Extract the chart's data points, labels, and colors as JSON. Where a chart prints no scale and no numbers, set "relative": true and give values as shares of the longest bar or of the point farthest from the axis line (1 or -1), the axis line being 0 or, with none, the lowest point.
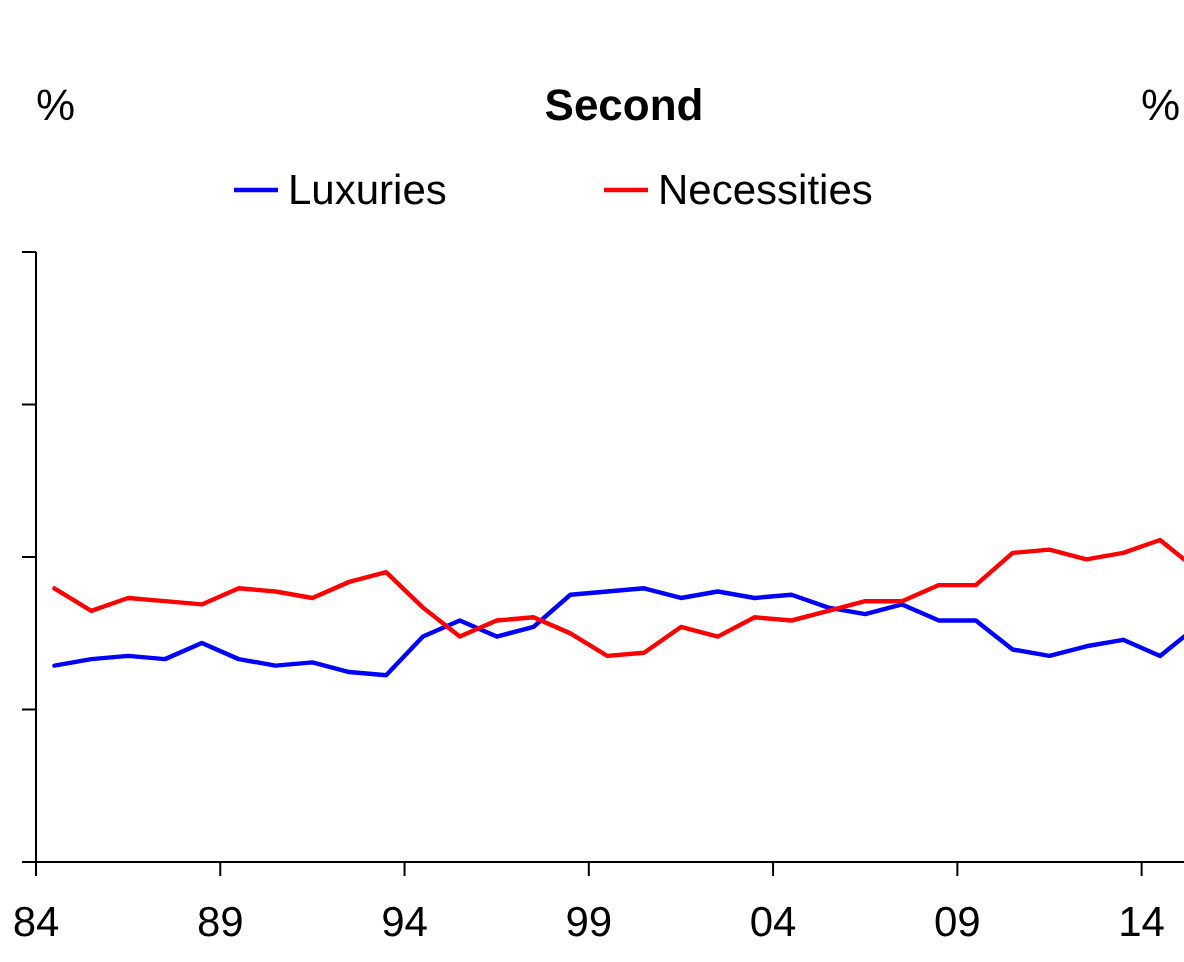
{
  "chart_data": {
    "type": "line",
    "title": "Second",
    "annotations": [
      "%",
      "%"
    ],
    "relative": true,
    "legend": "top",
    "marker": "none",
    "line_style": "solid",
    "x": [
      1984.5,
      1985.5,
      1986.5,
      1987.5,
      1988.5,
      1989.5,
      1990.5,
      1991.5,
      1992.5,
      1993.5,
      1994.5,
      1995.5,
      1996.5,
      1997.5,
      1998.5,
      1999.5,
      2000.5,
      2001.5,
      2002.5,
      2003.5,
      2004.5,
      2005.5,
      2006.5,
      2007.5,
      2008.5,
      2009.5,
      2010.5,
      2011.5,
      2012.5,
      2013.5,
      2014.5,
      2015.15
    ],
    "xlim": [
      1984,
      2015.15
    ],
    "xticks": [
      {
        "value": 1984,
        "label": "84"
      },
      {
        "value": 1989,
        "label": "89"
      },
      {
        "value": 1994,
        "label": "94"
      },
      {
        "value": 1999,
        "label": "99"
      },
      {
        "value": 2004,
        "label": "04"
      },
      {
        "value": 2009,
        "label": "09"
      },
      {
        "value": 2014,
        "label": "14"
      }
    ],
    "series": [
      {
        "name": "Luxuries",
        "color": "#0000ff",
        "values": [
          0.61,
          0.63,
          0.64,
          0.63,
          0.68,
          0.63,
          0.61,
          0.62,
          0.59,
          0.58,
          0.7,
          0.75,
          0.7,
          0.73,
          0.83,
          0.84,
          0.85,
          0.82,
          0.84,
          0.82,
          0.83,
          0.79,
          0.77,
          0.8,
          0.75,
          0.75,
          0.66,
          0.64,
          0.67,
          0.69,
          0.64,
          0.7
        ]
      },
      {
        "name": "Necessities",
        "color": "#ff0000",
        "values": [
          0.85,
          0.78,
          0.82,
          0.81,
          0.8,
          0.85,
          0.84,
          0.82,
          0.87,
          0.9,
          0.79,
          0.7,
          0.75,
          0.76,
          0.71,
          0.64,
          0.65,
          0.73,
          0.7,
          0.76,
          0.75,
          0.78,
          0.81,
          0.81,
          0.86,
          0.86,
          0.96,
          0.97,
          0.94,
          0.96,
          1,
          0.94
        ]
      }
    ]
  }
}
